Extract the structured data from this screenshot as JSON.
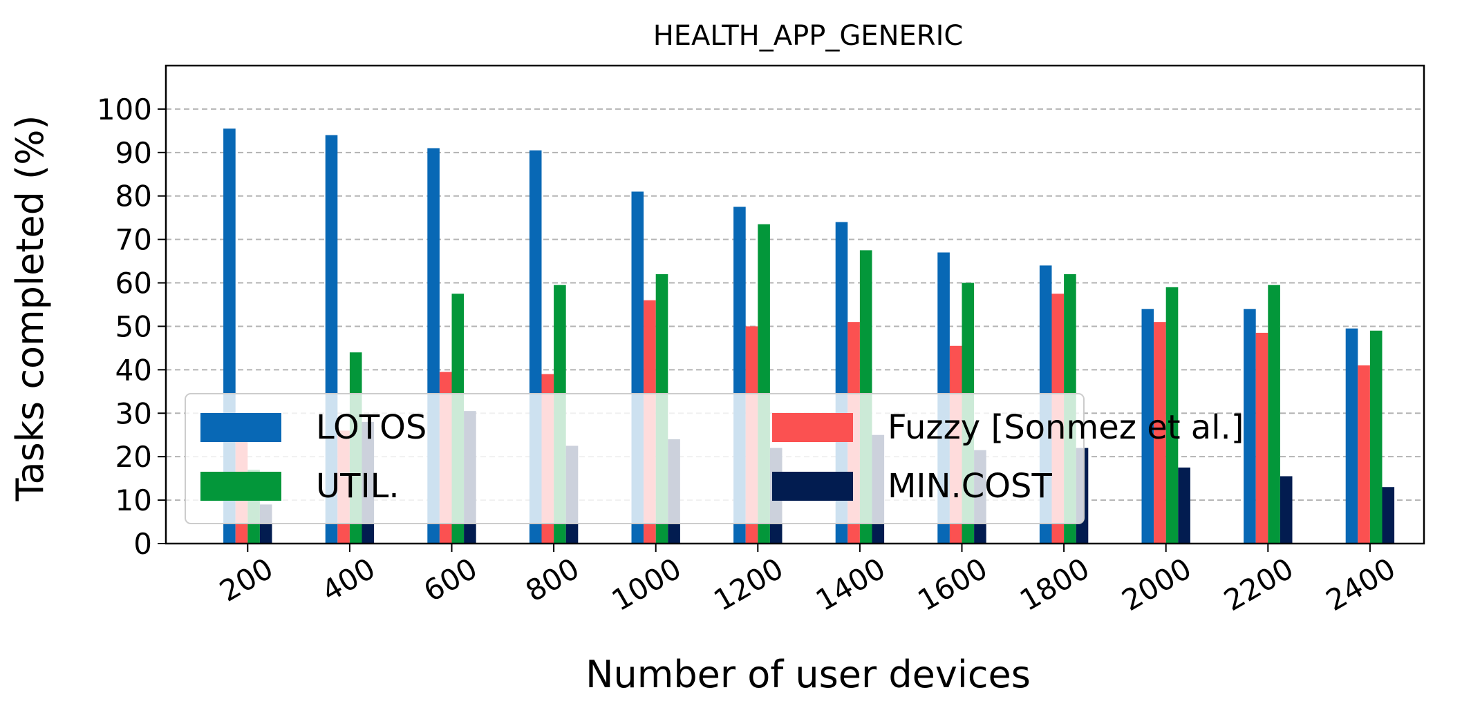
{
  "chart_data": {
    "type": "bar",
    "title": "HEALTH_APP_GENERIC",
    "xlabel": "Number of user devices",
    "ylabel": "Tasks completed (%)",
    "categories": [
      "200",
      "400",
      "600",
      "800",
      "1000",
      "1200",
      "1400",
      "1600",
      "1800",
      "2000",
      "2200",
      "2400"
    ],
    "yticks": [
      0,
      10,
      20,
      30,
      40,
      50,
      60,
      70,
      80,
      90,
      100
    ],
    "ylim": [
      0,
      110
    ],
    "grid": "y-dashed",
    "legend_position": "lower-left",
    "series": [
      {
        "name": "LOTOS",
        "color": "#0868b5",
        "values": [
          95.5,
          94,
          91,
          90.5,
          81,
          77.5,
          74,
          67,
          64,
          54,
          54,
          49.5
        ]
      },
      {
        "name": "Fuzzy [Sonmez et al.]",
        "color": "#fb5151",
        "values": [
          24,
          26,
          39.5,
          39,
          56,
          50,
          51,
          45.5,
          57.5,
          51,
          48.5,
          41
        ]
      },
      {
        "name": "UTIL.",
        "color": "#03973a",
        "values": [
          17,
          44,
          57.5,
          59.5,
          62,
          73.5,
          67.5,
          60,
          62,
          59,
          59.5,
          49
        ]
      },
      {
        "name": "MIN.COST",
        "color": "#021c50",
        "values": [
          9,
          28,
          30.5,
          22.5,
          24,
          22,
          25,
          21.5,
          22,
          17.5,
          15.5,
          13
        ]
      }
    ]
  }
}
